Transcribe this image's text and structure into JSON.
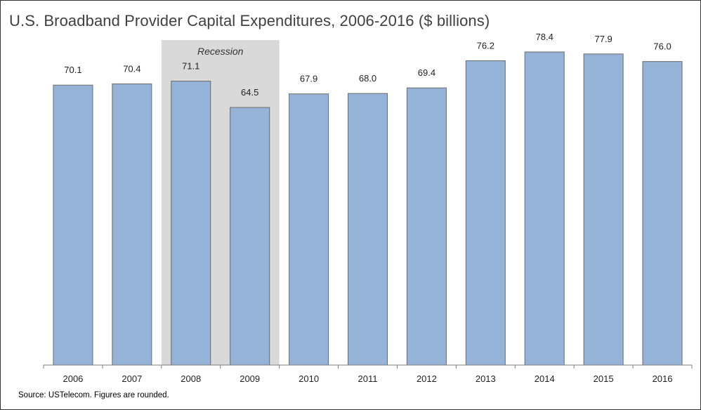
{
  "title": "U.S. Broadband Provider Capital Expenditures, 2006-2016 ($ billions)",
  "source": "Source: USTelecom. Figures are rounded.",
  "recession_label": "Recession",
  "colors": {
    "bar": "#95B3D7",
    "bar_stroke": "#6A6A6A",
    "recession_band": "#D9D9D9",
    "axis": "#7F7F7F"
  },
  "chart_data": {
    "type": "bar",
    "title": "U.S. Broadband Provider Capital Expenditures, 2006-2016 ($ billions)",
    "xlabel": "",
    "ylabel": "",
    "categories": [
      "2006",
      "2007",
      "2008",
      "2009",
      "2010",
      "2011",
      "2012",
      "2013",
      "2014",
      "2015",
      "2016"
    ],
    "series": [
      {
        "values": [
          70.1,
          70.4,
          71.1,
          64.5,
          67.9,
          68.0,
          69.4,
          76.2,
          78.4,
          77.9,
          76.0
        ]
      }
    ],
    "data_labels": [
      "70.1",
      "70.4",
      "71.1",
      "64.5",
      "67.9",
      "68.0",
      "69.4",
      "76.2",
      "78.4",
      "77.9",
      "76.0"
    ],
    "ylim": [
      0,
      90
    ],
    "grid": false,
    "legend": "none",
    "annotations": [
      {
        "text": "Recession",
        "x_range": [
          "2008",
          "2009"
        ],
        "style": "shaded-band"
      }
    ]
  }
}
